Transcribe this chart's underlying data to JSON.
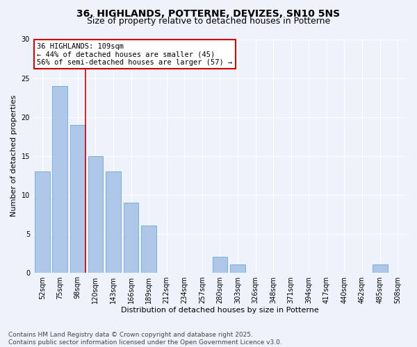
{
  "title_line1": "36, HIGHLANDS, POTTERNE, DEVIZES, SN10 5NS",
  "title_line2": "Size of property relative to detached houses in Potterne",
  "xlabel": "Distribution of detached houses by size in Potterne",
  "ylabel": "Number of detached properties",
  "categories": [
    "52sqm",
    "75sqm",
    "98sqm",
    "120sqm",
    "143sqm",
    "166sqm",
    "189sqm",
    "212sqm",
    "234sqm",
    "257sqm",
    "280sqm",
    "303sqm",
    "326sqm",
    "348sqm",
    "371sqm",
    "394sqm",
    "417sqm",
    "440sqm",
    "462sqm",
    "485sqm",
    "508sqm"
  ],
  "values": [
    13,
    24,
    19,
    15,
    13,
    9,
    6,
    0,
    0,
    0,
    2,
    1,
    0,
    0,
    0,
    0,
    0,
    0,
    0,
    1,
    0
  ],
  "bar_color": "#aec6e8",
  "bar_edge_color": "#5a9fd4",
  "background_color": "#eef2fb",
  "grid_color": "#ffffff",
  "annotation_box_text": "36 HIGHLANDS: 109sqm\n← 44% of detached houses are smaller (45)\n56% of semi-detached houses are larger (57) →",
  "annotation_box_color": "#ffffff",
  "annotation_box_edge_color": "#cc0000",
  "vline_color": "#cc0000",
  "ylim": [
    0,
    30
  ],
  "yticks": [
    0,
    5,
    10,
    15,
    20,
    25,
    30
  ],
  "footer_line1": "Contains HM Land Registry data © Crown copyright and database right 2025.",
  "footer_line2": "Contains public sector information licensed under the Open Government Licence v3.0.",
  "title_fontsize": 10,
  "subtitle_fontsize": 9,
  "axis_label_fontsize": 8,
  "tick_fontsize": 7,
  "annotation_fontsize": 7.5,
  "footer_fontsize": 6.5
}
